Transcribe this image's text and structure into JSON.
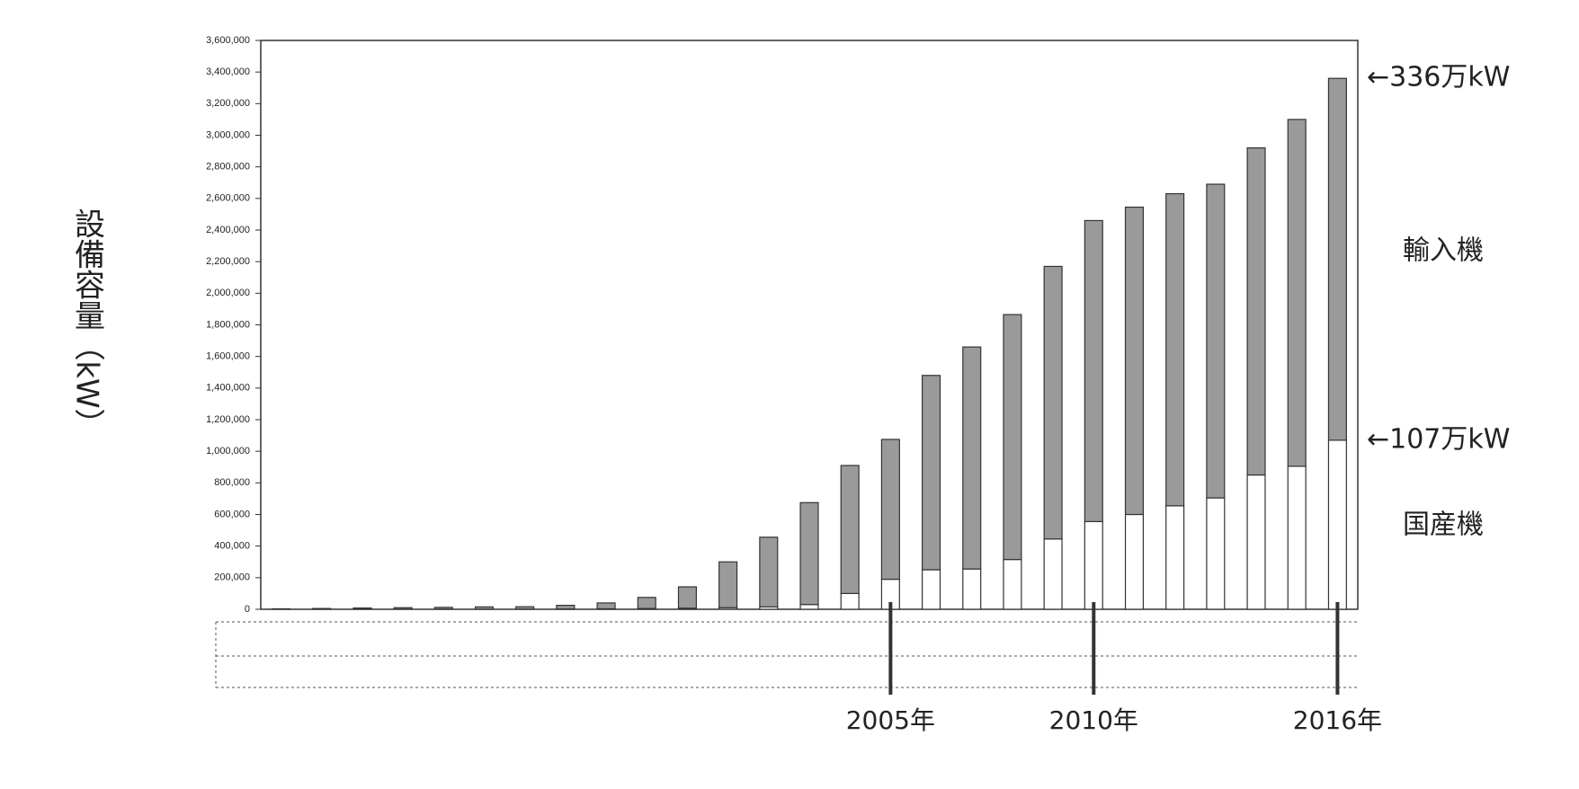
{
  "chart_data": {
    "type": "stacked_bar",
    "y_label": "設備容量（kW）",
    "categories": [
      null,
      null,
      null,
      null,
      null,
      null,
      null,
      null,
      null,
      null,
      null,
      null,
      null,
      null,
      null,
      "2005年",
      null,
      null,
      null,
      null,
      "2010年",
      null,
      null,
      null,
      null,
      null,
      "2016年"
    ],
    "series": [
      {
        "name": "国産機",
        "color": "#ffffff",
        "values": [
          500,
          500,
          1000,
          1000,
          1000,
          1000,
          1000,
          2000,
          3000,
          5000,
          7000,
          10000,
          15000,
          30000,
          100000,
          190000,
          250000,
          255000,
          315000,
          445000,
          555000,
          600000,
          655000,
          705000,
          850000,
          905000,
          1070000
        ]
      },
      {
        "name": "輸入機",
        "color": "#9a9a9a",
        "values": [
          2500,
          4500,
          7000,
          9000,
          11000,
          14000,
          15000,
          23000,
          37000,
          70000,
          135000,
          290000,
          441000,
          645000,
          810000,
          885000,
          1230000,
          1405000,
          1550000,
          1725000,
          1905000,
          1945000,
          1975000,
          1985000,
          2070000,
          2195000,
          2290000
        ]
      }
    ],
    "annotations": [
      "←336万kW",
      "←107万kW"
    ],
    "ylim": [
      0,
      3600000
    ],
    "yticks": [
      {
        "value": 0,
        "label": "0"
      },
      {
        "value": 200000,
        "label": "200,000"
      },
      {
        "value": 400000,
        "label": "400,000"
      },
      {
        "value": 600000,
        "label": "600,000"
      },
      {
        "value": 800000,
        "label": "800,000"
      },
      {
        "value": 1000000,
        "label": "1,000,000"
      },
      {
        "value": 1200000,
        "label": "1,200,000"
      },
      {
        "value": 1400000,
        "label": "1,400,000"
      },
      {
        "value": 1600000,
        "label": "1,600,000"
      },
      {
        "value": 1800000,
        "label": "1,800,000"
      },
      {
        "value": 2000000,
        "label": "2,000,000"
      },
      {
        "value": 2200000,
        "label": "2,200,000"
      },
      {
        "value": 2400000,
        "label": "2,400,000"
      },
      {
        "value": 2600000,
        "label": "2,600,000"
      },
      {
        "value": 2800000,
        "label": "2,800,000"
      },
      {
        "value": 3000000,
        "label": "3,000,000"
      },
      {
        "value": 3200000,
        "label": "3,200,000"
      },
      {
        "value": 3400000,
        "label": "3,400,000"
      },
      {
        "value": 3600000,
        "label": "3,600,000"
      }
    ],
    "grid": false
  }
}
